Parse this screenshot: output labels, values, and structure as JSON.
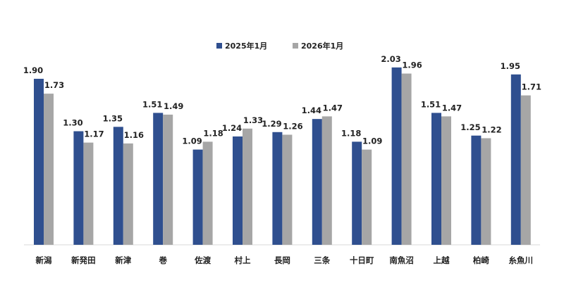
{
  "chart_data": {
    "type": "bar",
    "title": "",
    "xlabel": "",
    "ylabel": "",
    "ylim": [
      0,
      2.1
    ],
    "grid": false,
    "legend_position": "top-center",
    "categories": [
      "新潟",
      "新発田",
      "新津",
      "巻",
      "佐渡",
      "村上",
      "長岡",
      "三条",
      "十日町",
      "南魚沼",
      "上越",
      "柏崎",
      "糸魚川"
    ],
    "series": [
      {
        "name": "2025年1月",
        "color": "#2f4f8f",
        "values": [
          1.9,
          1.3,
          1.35,
          1.51,
          1.09,
          1.24,
          1.29,
          1.44,
          1.18,
          2.03,
          1.51,
          1.25,
          1.95
        ],
        "labels": [
          "1.90",
          "1.30",
          "1.35",
          "1.51",
          "1.09",
          "1.24",
          "1.29",
          "1.44",
          "1.18",
          "2.03",
          "1.51",
          "1.25",
          "1.95"
        ]
      },
      {
        "name": "2026年1月",
        "color": "#a6a6a6",
        "values": [
          1.73,
          1.17,
          1.16,
          1.49,
          1.18,
          1.33,
          1.26,
          1.47,
          1.09,
          1.96,
          1.47,
          1.22,
          1.71
        ],
        "labels": [
          "1.73",
          "1.17",
          "1.16",
          "1.49",
          "1.18",
          "1.33",
          "1.26",
          "1.47",
          "1.09",
          "1.96",
          "1.47",
          "1.22",
          "1.71"
        ]
      }
    ]
  }
}
